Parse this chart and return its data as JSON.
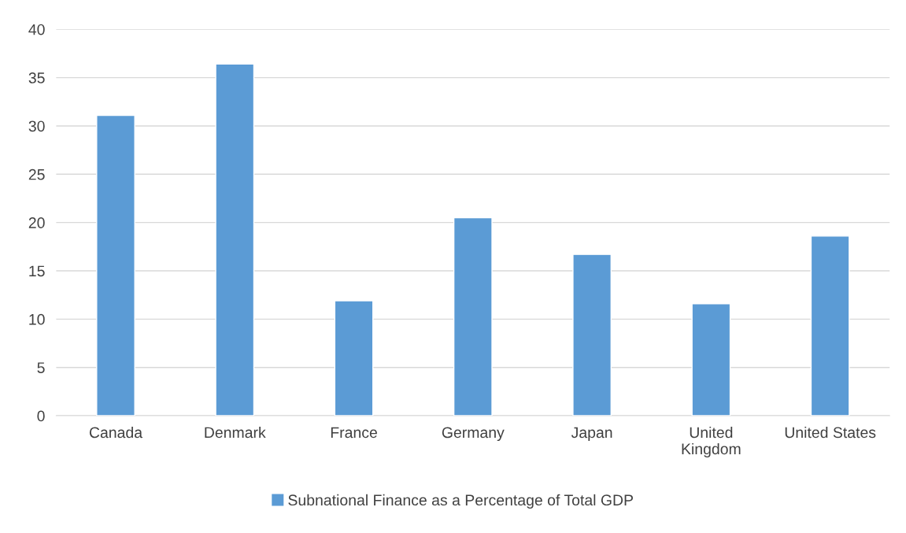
{
  "chart_data": {
    "type": "bar",
    "categories": [
      "Canada",
      "Denmark",
      "France",
      "Germany",
      "Japan",
      "United\nKingdom",
      "United States"
    ],
    "series": [
      {
        "name": "Subnational Finance as a Percentage of Total GDP",
        "color": "#5b9bd5",
        "values": [
          31.1,
          36.4,
          11.9,
          20.5,
          16.7,
          11.6,
          18.6
        ]
      }
    ],
    "ylim": [
      0,
      40
    ],
    "yticks": [
      0,
      5,
      10,
      15,
      20,
      25,
      30,
      35,
      40
    ],
    "grid": "y",
    "legend": "bottom"
  }
}
